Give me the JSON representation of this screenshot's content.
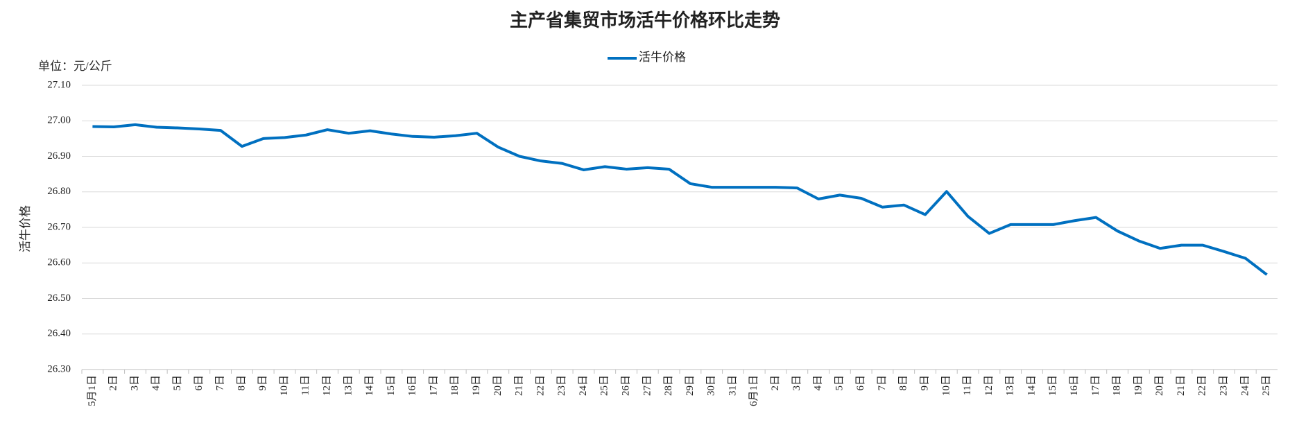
{
  "chart_data": {
    "type": "line",
    "title": "主产省集贸市场活牛价格环比走势",
    "unit_label": "单位：元/公斤",
    "y_label": "活牛价格",
    "legend": "top",
    "grid": true,
    "categories": [
      "5月1日",
      "2日",
      "3日",
      "4日",
      "5日",
      "6日",
      "7日",
      "8日",
      "9日",
      "10日",
      "11日",
      "12日",
      "13日",
      "14日",
      "15日",
      "16日",
      "17日",
      "18日",
      "19日",
      "20日",
      "21日",
      "22日",
      "23日",
      "24日",
      "25日",
      "26日",
      "27日",
      "28日",
      "29日",
      "30日",
      "31日",
      "6月1日",
      "2日",
      "3日",
      "4日",
      "5日",
      "6日",
      "7日",
      "8日",
      "9日",
      "10日",
      "11日",
      "12日",
      "13日",
      "14日",
      "15日",
      "16日",
      "17日",
      "18日",
      "19日",
      "20日",
      "21日",
      "22日",
      "23日",
      "24日",
      "25日"
    ],
    "series": [
      {
        "name": "活牛价格",
        "color": "#0070c0",
        "values": [
          26.984,
          26.983,
          26.989,
          26.982,
          26.98,
          26.977,
          26.973,
          26.928,
          26.95,
          26.953,
          26.96,
          26.975,
          26.965,
          26.972,
          26.963,
          26.956,
          26.954,
          26.958,
          26.965,
          26.926,
          26.9,
          26.887,
          26.88,
          26.862,
          26.871,
          26.864,
          26.868,
          26.864,
          26.823,
          26.813,
          26.813,
          26.813,
          26.813,
          26.811,
          26.78,
          26.791,
          26.782,
          26.757,
          26.763,
          26.736,
          26.801,
          26.731,
          26.683,
          26.708,
          26.708,
          26.708,
          26.719,
          26.728,
          26.69,
          26.662,
          26.641,
          26.65,
          26.65,
          26.632,
          26.613,
          26.567
        ]
      }
    ],
    "ylim": [
      26.3,
      27.1
    ],
    "yticks": [
      {
        "value": 26.3,
        "label": "26.30"
      },
      {
        "value": 26.4,
        "label": "26.40"
      },
      {
        "value": 26.5,
        "label": "26.50"
      },
      {
        "value": 26.6,
        "label": "26.60"
      },
      {
        "value": 26.7,
        "label": "26.70"
      },
      {
        "value": 26.8,
        "label": "26.80"
      },
      {
        "value": 26.9,
        "label": "26.90"
      },
      {
        "value": 27.0,
        "label": "27.00"
      },
      {
        "value": 27.1,
        "label": "27.10"
      }
    ]
  }
}
